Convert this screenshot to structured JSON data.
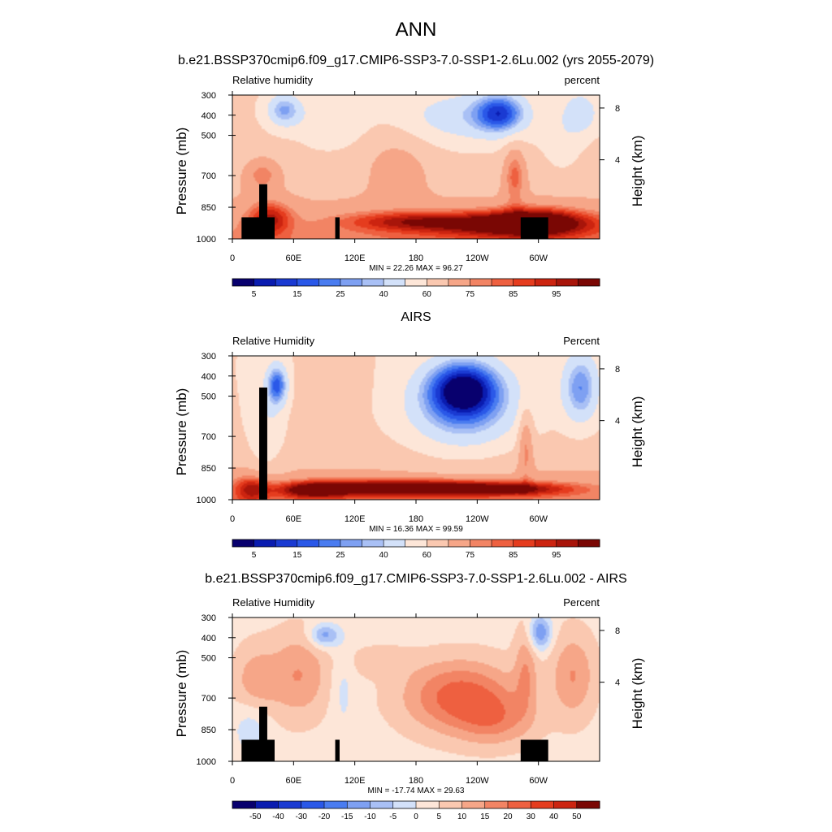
{
  "figure": {
    "title": "ANN",
    "subtitle": "b.e21.BSSP370cmip6.f09_g17.CMIP6-SSP3-7.0-SSP1-2.6Lu.002 (yrs 2055-2079)"
  },
  "chart_data": [
    {
      "type": "heatmap",
      "panel_title": "",
      "left_label": "Relative humidity",
      "right_label": "percent",
      "ylabel": "Pressure (mb)",
      "ylabel_right": "Height (km)",
      "yticks": [
        "300",
        "400",
        "500",
        "700",
        "850",
        "1000"
      ],
      "yticks_right": [
        "8",
        "4"
      ],
      "xticks": [
        "0",
        "60E",
        "120E",
        "180",
        "120W",
        "60W"
      ],
      "stats": "MIN =  22.26  MAX =  96.27",
      "colorbar_labels": [
        "5",
        "15",
        "25",
        "40",
        "60",
        "75",
        "85",
        "95"
      ],
      "colorbar_colors": [
        "#08006e",
        "#0a1cb0",
        "#1a3ad2",
        "#2a58e8",
        "#4a7cf0",
        "#7ea0f2",
        "#a9c0f5",
        "#d3e1f9",
        "#fde6d8",
        "#fac8b0",
        "#f6a688",
        "#f28464",
        "#ee6040",
        "#e53c1e",
        "#cc2410",
        "#a8150a",
        "#7a0704"
      ],
      "terrain": "yes",
      "pattern": "model"
    },
    {
      "type": "heatmap",
      "panel_title": "AIRS",
      "left_label": "Relative Humidity",
      "right_label": "Percent",
      "ylabel": "Pressure (mb)",
      "ylabel_right": "Height (km)",
      "yticks": [
        "300",
        "400",
        "500",
        "700",
        "850",
        "1000"
      ],
      "yticks_right": [
        "8",
        "4"
      ],
      "xticks": [
        "0",
        "60E",
        "120E",
        "180",
        "120W",
        "60W"
      ],
      "stats": "MIN =  16.36  MAX =  99.59",
      "colorbar_labels": [
        "5",
        "15",
        "25",
        "40",
        "60",
        "75",
        "85",
        "95"
      ],
      "colorbar_colors": [
        "#08006e",
        "#0a1cb0",
        "#1a3ad2",
        "#2a58e8",
        "#4a7cf0",
        "#7ea0f2",
        "#a9c0f5",
        "#d3e1f9",
        "#fde6d8",
        "#fac8b0",
        "#f6a688",
        "#f28464",
        "#ee6040",
        "#e53c1e",
        "#cc2410",
        "#a8150a",
        "#7a0704"
      ],
      "terrain": "small",
      "pattern": "obs"
    },
    {
      "type": "heatmap",
      "panel_title": "b.e21.BSSP370cmip6.f09_g17.CMIP6-SSP3-7.0-SSP1-2.6Lu.002 - AIRS",
      "left_label": "Relative Humidity",
      "right_label": "Percent",
      "ylabel": "Pressure (mb)",
      "ylabel_right": "Height (km)",
      "yticks": [
        "300",
        "400",
        "500",
        "700",
        "850",
        "1000"
      ],
      "yticks_right": [
        "8",
        "4"
      ],
      "xticks": [
        "0",
        "60E",
        "120E",
        "180",
        "120W",
        "60W"
      ],
      "stats": "MIN = -17.74  MAX =  29.63",
      "colorbar_labels": [
        "-50",
        "-40",
        "-30",
        "-20",
        "-15",
        "-10",
        "-5",
        "0",
        "5",
        "10",
        "15",
        "20",
        "30",
        "40",
        "50"
      ],
      "colorbar_colors": [
        "#08006e",
        "#0a1cb0",
        "#1a3ad2",
        "#2a58e8",
        "#4a7cf0",
        "#7ea0f2",
        "#a9c0f5",
        "#d3e1f9",
        "#fde6d8",
        "#fac8b0",
        "#f6a688",
        "#f28464",
        "#ee6040",
        "#e53c1e",
        "#cc2410",
        "#7a0704"
      ],
      "terrain": "yes",
      "pattern": "diff"
    }
  ]
}
